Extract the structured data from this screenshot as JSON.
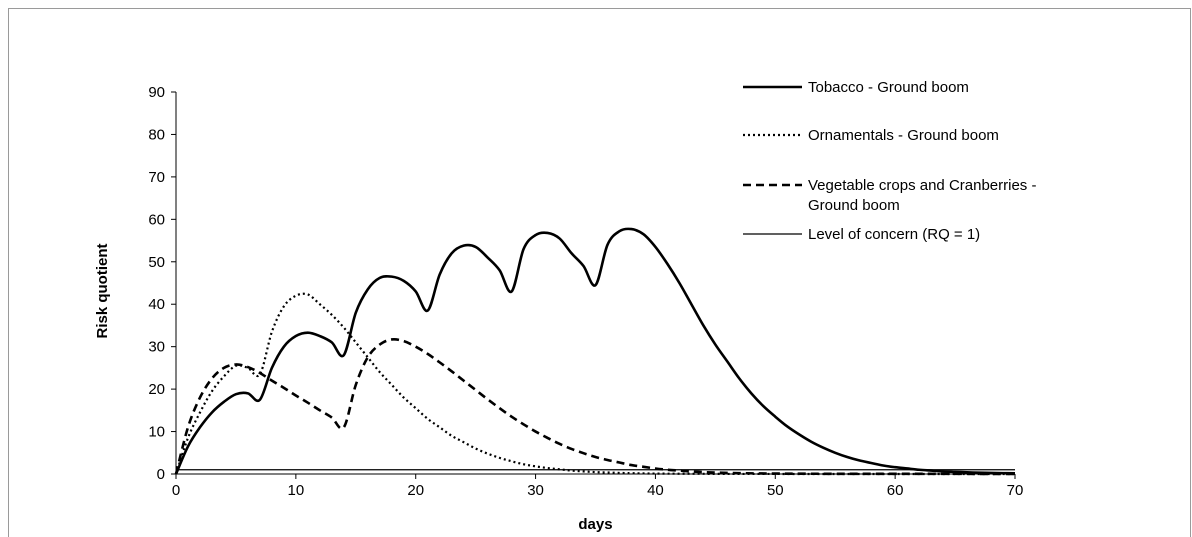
{
  "chart_data": {
    "type": "line",
    "title": "",
    "xlabel": "days",
    "ylabel": "Risk quotient",
    "xlim": [
      0,
      70
    ],
    "ylim": [
      0,
      90
    ],
    "xticks": [
      0,
      10,
      20,
      30,
      40,
      50,
      60,
      70
    ],
    "yticks": [
      0,
      10,
      20,
      30,
      40,
      50,
      60,
      70,
      80,
      90
    ],
    "grid": false,
    "legend_position": "top-right",
    "series": [
      {
        "name": "Tobacco - Ground boom",
        "style": "solid-thick",
        "color": "#000000",
        "points": [
          [
            0,
            0
          ],
          [
            1,
            6.5
          ],
          [
            2,
            11
          ],
          [
            3,
            14.5
          ],
          [
            4,
            17
          ],
          [
            5,
            18.8
          ],
          [
            6,
            19
          ],
          [
            7,
            17.5
          ],
          [
            8,
            25
          ],
          [
            9,
            30
          ],
          [
            10,
            32.5
          ],
          [
            11,
            33.3
          ],
          [
            12,
            32.5
          ],
          [
            13,
            31
          ],
          [
            14,
            28
          ],
          [
            15,
            38
          ],
          [
            16,
            43.5
          ],
          [
            17,
            46.2
          ],
          [
            18,
            46.5
          ],
          [
            19,
            45.5
          ],
          [
            20,
            43
          ],
          [
            21,
            38.5
          ],
          [
            22,
            47
          ],
          [
            23,
            52
          ],
          [
            24,
            53.8
          ],
          [
            25,
            53.5
          ],
          [
            26,
            51
          ],
          [
            27,
            48
          ],
          [
            28,
            43
          ],
          [
            29,
            53
          ],
          [
            30,
            56.3
          ],
          [
            31,
            56.8
          ],
          [
            32,
            55.5
          ],
          [
            33,
            52
          ],
          [
            34,
            49
          ],
          [
            35,
            44.5
          ],
          [
            36,
            54
          ],
          [
            37,
            57.2
          ],
          [
            38,
            57.7
          ],
          [
            39,
            56.5
          ],
          [
            40,
            53.5
          ],
          [
            41,
            49.5
          ],
          [
            42,
            45
          ],
          [
            43,
            40
          ],
          [
            44,
            35
          ],
          [
            45,
            30.5
          ],
          [
            46,
            26.5
          ],
          [
            47,
            22.5
          ],
          [
            48,
            19
          ],
          [
            49,
            16
          ],
          [
            50,
            13.5
          ],
          [
            51,
            11.2
          ],
          [
            52,
            9.3
          ],
          [
            53,
            7.6
          ],
          [
            54,
            6.2
          ],
          [
            55,
            5
          ],
          [
            56,
            4
          ],
          [
            57,
            3.2
          ],
          [
            58,
            2.6
          ],
          [
            59,
            2
          ],
          [
            60,
            1.6
          ],
          [
            61,
            1.3
          ],
          [
            62,
            1
          ],
          [
            63,
            0.8
          ],
          [
            64,
            0.6
          ],
          [
            65,
            0.5
          ],
          [
            66,
            0.4
          ],
          [
            67,
            0.3
          ],
          [
            68,
            0.25
          ],
          [
            69,
            0.2
          ],
          [
            70,
            0.15
          ]
        ]
      },
      {
        "name": "Ornamentals - Ground boom",
        "style": "dotted",
        "color": "#000000",
        "points": [
          [
            0,
            0
          ],
          [
            1,
            8.5
          ],
          [
            2,
            14.5
          ],
          [
            3,
            19.5
          ],
          [
            4,
            23
          ],
          [
            5,
            25.5
          ],
          [
            6,
            25
          ],
          [
            7,
            23.5
          ],
          [
            8,
            33.5
          ],
          [
            9,
            39.5
          ],
          [
            10,
            42
          ],
          [
            11,
            42.3
          ],
          [
            12,
            40
          ],
          [
            13,
            37.5
          ],
          [
            14,
            34.5
          ],
          [
            15,
            31
          ],
          [
            16,
            27.5
          ],
          [
            17,
            24
          ],
          [
            18,
            21
          ],
          [
            19,
            18
          ],
          [
            20,
            15.5
          ],
          [
            21,
            13
          ],
          [
            22,
            11
          ],
          [
            23,
            9
          ],
          [
            24,
            7.5
          ],
          [
            25,
            6
          ],
          [
            26,
            4.8
          ],
          [
            27,
            3.8
          ],
          [
            28,
            3
          ],
          [
            29,
            2.3
          ],
          [
            30,
            1.8
          ],
          [
            31,
            1.4
          ],
          [
            32,
            1.1
          ],
          [
            33,
            0.8
          ],
          [
            34,
            0.6
          ],
          [
            35,
            0.45
          ],
          [
            36,
            0.35
          ],
          [
            37,
            0.25
          ],
          [
            38,
            0.2
          ],
          [
            40,
            0.1
          ],
          [
            45,
            0.03
          ],
          [
            50,
            0.01
          ],
          [
            70,
            0
          ]
        ]
      },
      {
        "name": "Vegetable crops and Cranberries - Ground boom",
        "style": "dashed",
        "color": "#000000",
        "points": [
          [
            0,
            0
          ],
          [
            1,
            11
          ],
          [
            2,
            18
          ],
          [
            3,
            22.5
          ],
          [
            4,
            25
          ],
          [
            5,
            25.8
          ],
          [
            6,
            25.2
          ],
          [
            7,
            23.8
          ],
          [
            8,
            22
          ],
          [
            9,
            20.3
          ],
          [
            10,
            18.5
          ],
          [
            11,
            16.8
          ],
          [
            12,
            15
          ],
          [
            13,
            13.3
          ],
          [
            14,
            11
          ],
          [
            15,
            21
          ],
          [
            16,
            27.5
          ],
          [
            17,
            30.5
          ],
          [
            18,
            31.7
          ],
          [
            19,
            31.3
          ],
          [
            20,
            30
          ],
          [
            21,
            28.3
          ],
          [
            22,
            26.3
          ],
          [
            23,
            24.2
          ],
          [
            24,
            22
          ],
          [
            25,
            19.8
          ],
          [
            26,
            17.6
          ],
          [
            27,
            15.5
          ],
          [
            28,
            13.5
          ],
          [
            29,
            11.7
          ],
          [
            30,
            10
          ],
          [
            31,
            8.5
          ],
          [
            32,
            7.1
          ],
          [
            33,
            5.9
          ],
          [
            34,
            4.9
          ],
          [
            35,
            4
          ],
          [
            36,
            3.3
          ],
          [
            37,
            2.7
          ],
          [
            38,
            2.1
          ],
          [
            39,
            1.7
          ],
          [
            40,
            1.3
          ],
          [
            41,
            1
          ],
          [
            42,
            0.8
          ],
          [
            43,
            0.6
          ],
          [
            44,
            0.45
          ],
          [
            45,
            0.35
          ],
          [
            47,
            0.2
          ],
          [
            50,
            0.1
          ],
          [
            55,
            0.05
          ],
          [
            70,
            0.02
          ]
        ]
      },
      {
        "name": "Level of concern (RQ = 1)",
        "style": "solid-thin",
        "color": "#000000",
        "points": [
          [
            0,
            1
          ],
          [
            70,
            1
          ]
        ]
      }
    ]
  }
}
